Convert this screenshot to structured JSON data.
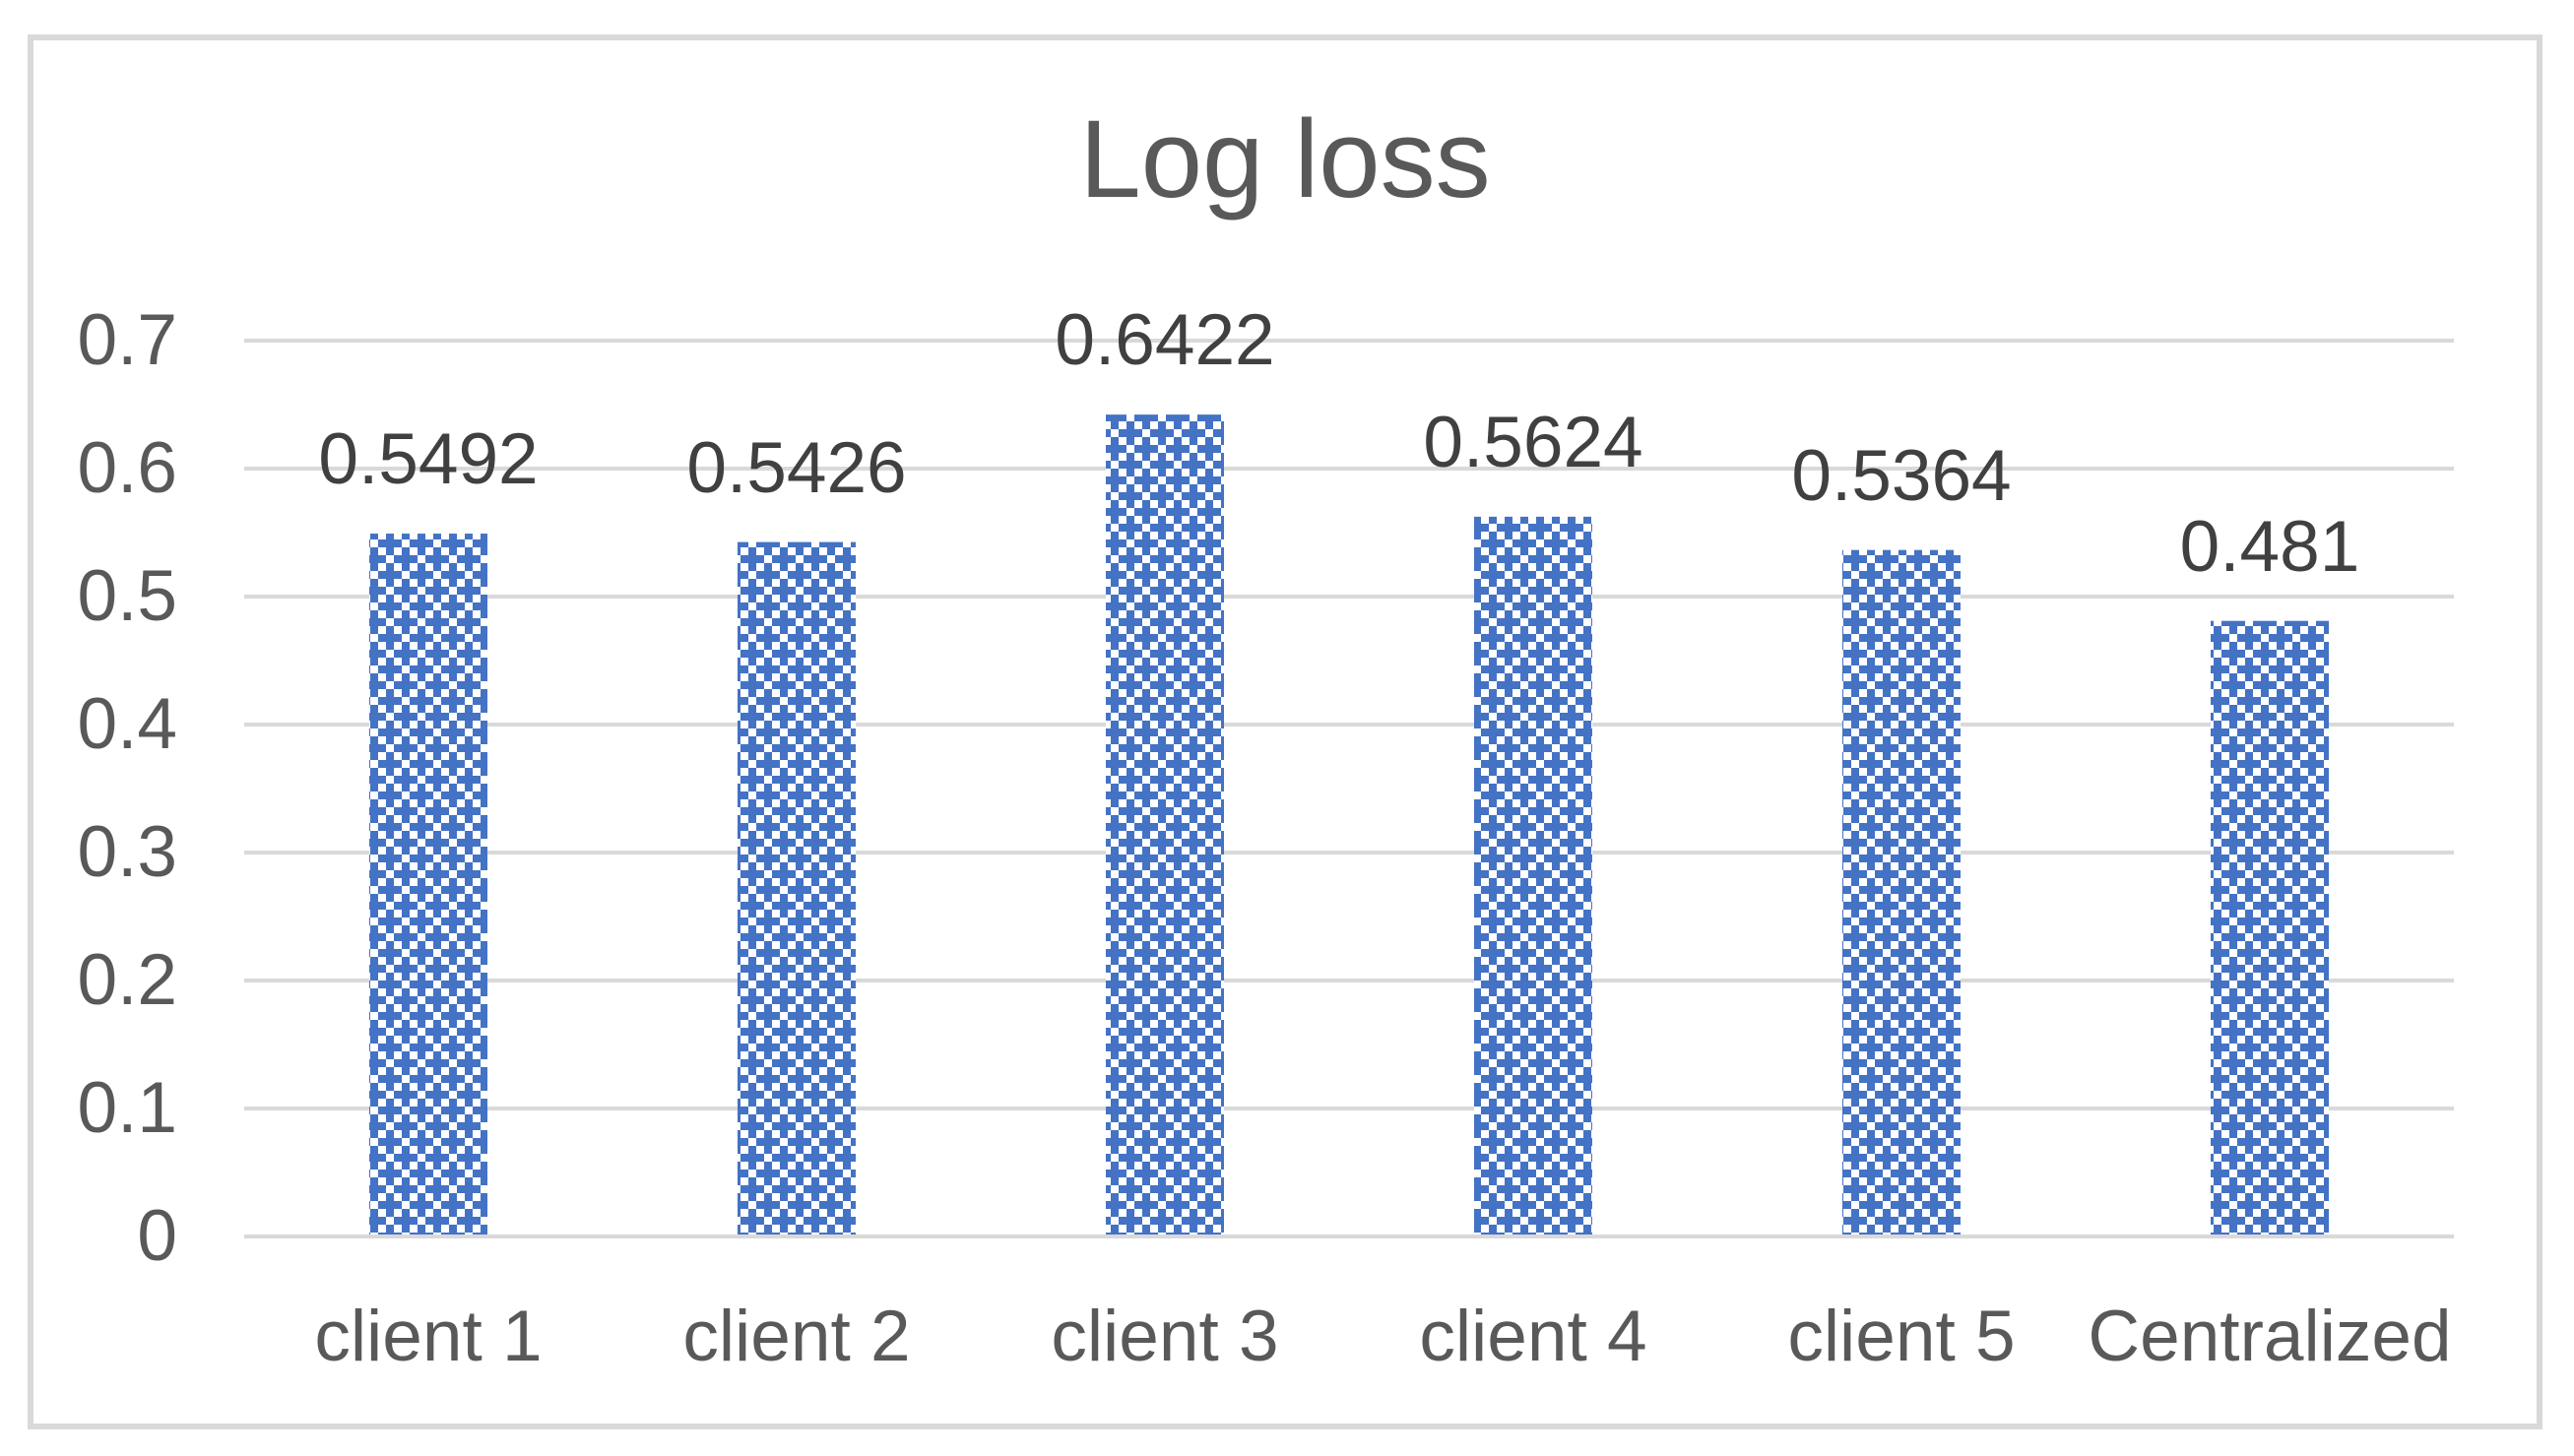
{
  "chart_data": {
    "type": "bar",
    "title": "Log loss",
    "categories": [
      "client 1",
      "client 2",
      "client 3",
      "client 4",
      "client 5",
      "Centralized"
    ],
    "values": [
      0.5492,
      0.5426,
      0.6422,
      0.5624,
      0.5364,
      0.481
    ],
    "data_labels": [
      "0.5492",
      "0.5426",
      "0.6422",
      "0.5624",
      "0.5364",
      "0.481"
    ],
    "xlabel": "",
    "ylabel": "",
    "ylim": [
      0,
      0.7
    ],
    "ytick_step": 0.1,
    "ytick_labels": [
      "0",
      "0.1",
      "0.2",
      "0.3",
      "0.4",
      "0.5",
      "0.6",
      "0.7"
    ],
    "grid": true,
    "legend": false,
    "bar_style": "patterned (blue cross/checker pattern fill)",
    "colors": {
      "bar_pattern": "#4472C4",
      "bar_pattern_background": "#FFFFFF",
      "gridline": "#D9D9D9",
      "chart_border": "#D9D9D9",
      "title_text": "#595959",
      "axis_text": "#595959",
      "data_label_text": "#404040",
      "background": "#FFFFFF"
    }
  }
}
